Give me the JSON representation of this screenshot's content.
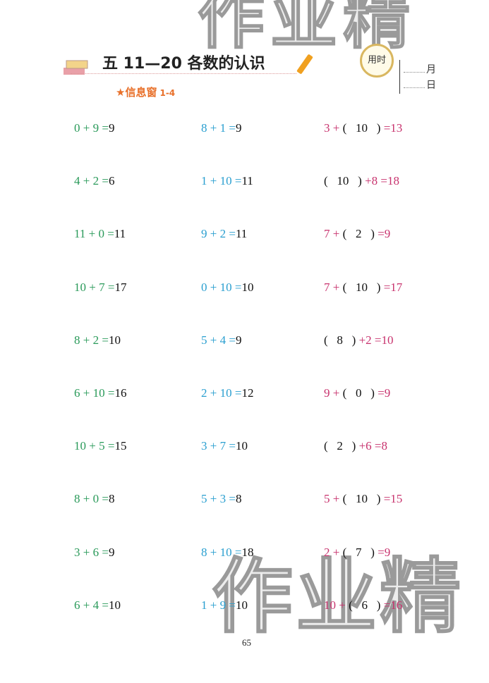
{
  "watermark": "作业精",
  "header": {
    "title": "五  11—20 各数的认识",
    "clock_label": "用时",
    "month": "月",
    "day": "日",
    "section": "信息窗",
    "section_num": "1-4"
  },
  "colors": {
    "col1": "#2a9a5a",
    "col2": "#2a9fd0",
    "col3": "#c8336e",
    "answer": "#111111",
    "section": "#e8702a"
  },
  "rows": [
    {
      "a": {
        "e": "0 + 9 =",
        "r": "9"
      },
      "b": {
        "e": "8 + 1 =",
        "r": "9"
      },
      "c": {
        "pre": "3 + ",
        "ans": "10",
        "post": "=13",
        "paren_first": false
      }
    },
    {
      "a": {
        "e": "4 + 2 =",
        "r": "6"
      },
      "b": {
        "e": "1 + 10 =",
        "r": "11"
      },
      "c": {
        "pre": "",
        "ans": "10",
        "post": "+8 =18",
        "paren_first": true
      }
    },
    {
      "a": {
        "e": "11 + 0 =",
        "r": "11"
      },
      "b": {
        "e": "9 + 2 =",
        "r": "11"
      },
      "c": {
        "pre": "7 + ",
        "ans": "2",
        "post": "=9",
        "paren_first": false
      }
    },
    {
      "a": {
        "e": "10 + 7 =",
        "r": "17"
      },
      "b": {
        "e": "0 + 10 =",
        "r": "10"
      },
      "c": {
        "pre": "7 + ",
        "ans": "10",
        "post": "=17",
        "paren_first": false
      }
    },
    {
      "a": {
        "e": "8 + 2 =",
        "r": "10"
      },
      "b": {
        "e": "5 + 4 =",
        "r": "9"
      },
      "c": {
        "pre": "",
        "ans": "8",
        "post": "+2 =10",
        "paren_first": true
      }
    },
    {
      "a": {
        "e": "6 + 10 =",
        "r": "16"
      },
      "b": {
        "e": "2 + 10 =",
        "r": "12"
      },
      "c": {
        "pre": "9 + ",
        "ans": "0",
        "post": "=9",
        "paren_first": false
      }
    },
    {
      "a": {
        "e": "10 + 5 =",
        "r": "15"
      },
      "b": {
        "e": "3 + 7 =",
        "r": "10"
      },
      "c": {
        "pre": "",
        "ans": "2",
        "post": "+6 =8",
        "paren_first": true
      }
    },
    {
      "a": {
        "e": "8 + 0 =",
        "r": "8"
      },
      "b": {
        "e": "5 + 3 =",
        "r": "8"
      },
      "c": {
        "pre": "5 + ",
        "ans": "10",
        "post": "=15",
        "paren_first": false
      }
    },
    {
      "a": {
        "e": "3 + 6 =",
        "r": "9"
      },
      "b": {
        "e": "8 + 10 =",
        "r": "18"
      },
      "c": {
        "pre": "2 + ",
        "ans": "7",
        "post": "=9",
        "paren_first": false
      }
    },
    {
      "a": {
        "e": "6 + 4 =",
        "r": "10"
      },
      "b": {
        "e": "1 + 9 =",
        "r": "10"
      },
      "c": {
        "pre": "10 + ",
        "ans": "6",
        "post": "=16",
        "paren_first": false
      }
    }
  ],
  "page_number": "65"
}
